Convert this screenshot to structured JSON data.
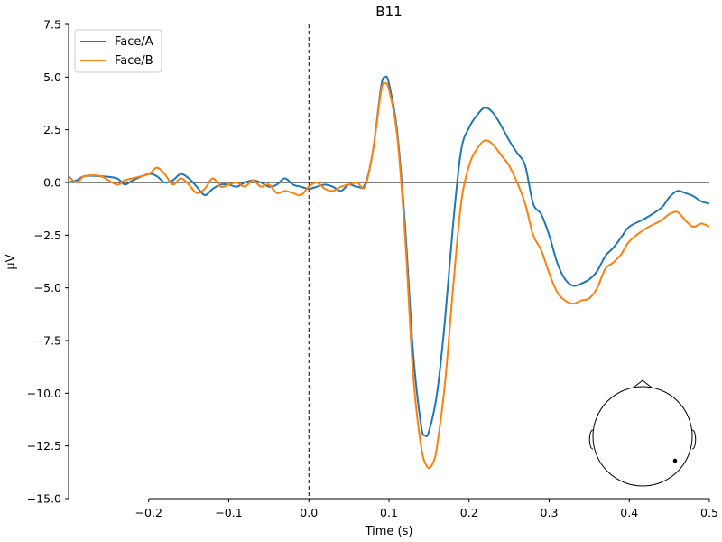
{
  "chart_data": {
    "type": "line",
    "title": "B11",
    "xlabel": "Time (s)",
    "ylabel": "µV",
    "xlim": [
      -0.3,
      0.5
    ],
    "ylim": [
      -15.0,
      7.5
    ],
    "xticks": [
      -0.2,
      -0.1,
      0.0,
      0.1,
      0.2,
      0.3,
      0.4,
      0.5
    ],
    "xtick_labels": [
      "−0.2",
      "−0.1",
      "0.0",
      "0.1",
      "0.2",
      "0.3",
      "0.4",
      "0.5"
    ],
    "yticks": [
      7.5,
      5.0,
      2.5,
      0.0,
      -2.5,
      -5.0,
      -7.5,
      -10.0,
      -12.5,
      -15.0
    ],
    "ytick_labels": [
      "7.5",
      "5.0",
      "2.5",
      "0.0",
      "−2.5",
      "−5.0",
      "−7.5",
      "−10.0",
      "−12.5",
      "−15.0"
    ],
    "grid": false,
    "legend_position": "top-left",
    "reference_lines": {
      "horizontal_y": 0.0,
      "vertical_dashed_x": 0.0
    },
    "series": [
      {
        "name": "Face/A",
        "color": "#1f77b4",
        "points": [
          [
            -0.3,
            0.0
          ],
          [
            -0.29,
            0.1
          ],
          [
            -0.28,
            0.3
          ],
          [
            -0.26,
            0.3
          ],
          [
            -0.24,
            0.2
          ],
          [
            -0.23,
            -0.1
          ],
          [
            -0.22,
            0.1
          ],
          [
            -0.2,
            0.4
          ],
          [
            -0.19,
            0.3
          ],
          [
            -0.18,
            0.0
          ],
          [
            -0.17,
            0.1
          ],
          [
            -0.16,
            0.4
          ],
          [
            -0.15,
            0.2
          ],
          [
            -0.14,
            -0.2
          ],
          [
            -0.13,
            -0.6
          ],
          [
            -0.12,
            -0.3
          ],
          [
            -0.11,
            -0.1
          ],
          [
            -0.1,
            -0.1
          ],
          [
            -0.09,
            -0.2
          ],
          [
            -0.08,
            0.0
          ],
          [
            -0.07,
            0.1
          ],
          [
            -0.06,
            0.0
          ],
          [
            -0.05,
            -0.2
          ],
          [
            -0.04,
            -0.1
          ],
          [
            -0.03,
            0.2
          ],
          [
            -0.02,
            -0.1
          ],
          [
            -0.01,
            -0.2
          ],
          [
            0.0,
            -0.3
          ],
          [
            0.01,
            -0.2
          ],
          [
            0.02,
            -0.1
          ],
          [
            0.03,
            -0.2
          ],
          [
            0.04,
            -0.4
          ],
          [
            0.05,
            -0.1
          ],
          [
            0.06,
            -0.2
          ],
          [
            0.07,
            -0.1
          ],
          [
            0.08,
            1.5
          ],
          [
            0.09,
            4.5
          ],
          [
            0.095,
            5.0
          ],
          [
            0.1,
            4.7
          ],
          [
            0.11,
            2.5
          ],
          [
            0.12,
            -2.0
          ],
          [
            0.13,
            -8.0
          ],
          [
            0.14,
            -11.5
          ],
          [
            0.145,
            -12.0
          ],
          [
            0.15,
            -11.8
          ],
          [
            0.16,
            -10.0
          ],
          [
            0.17,
            -6.5
          ],
          [
            0.18,
            -2.0
          ],
          [
            0.19,
            1.5
          ],
          [
            0.2,
            2.6
          ],
          [
            0.21,
            3.2
          ],
          [
            0.22,
            3.55
          ],
          [
            0.23,
            3.3
          ],
          [
            0.24,
            2.7
          ],
          [
            0.25,
            2.0
          ],
          [
            0.26,
            1.4
          ],
          [
            0.27,
            0.8
          ],
          [
            0.28,
            -1.0
          ],
          [
            0.29,
            -1.5
          ],
          [
            0.3,
            -2.5
          ],
          [
            0.31,
            -3.8
          ],
          [
            0.32,
            -4.6
          ],
          [
            0.33,
            -4.9
          ],
          [
            0.34,
            -4.8
          ],
          [
            0.35,
            -4.6
          ],
          [
            0.36,
            -4.2
          ],
          [
            0.37,
            -3.5
          ],
          [
            0.38,
            -3.1
          ],
          [
            0.39,
            -2.6
          ],
          [
            0.4,
            -2.1
          ],
          [
            0.42,
            -1.7
          ],
          [
            0.44,
            -1.2
          ],
          [
            0.45,
            -0.7
          ],
          [
            0.46,
            -0.4
          ],
          [
            0.47,
            -0.5
          ],
          [
            0.48,
            -0.65
          ],
          [
            0.49,
            -0.9
          ],
          [
            0.5,
            -1.0
          ]
        ]
      },
      {
        "name": "Face/B",
        "color": "#ff7f0e",
        "points": [
          [
            -0.3,
            0.3
          ],
          [
            -0.29,
            0.0
          ],
          [
            -0.28,
            0.3
          ],
          [
            -0.26,
            0.3
          ],
          [
            -0.24,
            -0.1
          ],
          [
            -0.23,
            0.1
          ],
          [
            -0.22,
            0.2
          ],
          [
            -0.2,
            0.4
          ],
          [
            -0.19,
            0.7
          ],
          [
            -0.18,
            0.4
          ],
          [
            -0.17,
            -0.1
          ],
          [
            -0.16,
            0.2
          ],
          [
            -0.15,
            -0.1
          ],
          [
            -0.14,
            -0.5
          ],
          [
            -0.13,
            -0.3
          ],
          [
            -0.12,
            0.2
          ],
          [
            -0.11,
            -0.2
          ],
          [
            -0.1,
            -0.1
          ],
          [
            -0.09,
            0.0
          ],
          [
            -0.08,
            -0.2
          ],
          [
            -0.07,
            0.1
          ],
          [
            -0.06,
            -0.2
          ],
          [
            -0.05,
            -0.1
          ],
          [
            -0.04,
            -0.5
          ],
          [
            -0.03,
            -0.4
          ],
          [
            -0.02,
            -0.5
          ],
          [
            -0.01,
            -0.6
          ],
          [
            0.0,
            -0.2
          ],
          [
            0.01,
            0.0
          ],
          [
            0.02,
            -0.3
          ],
          [
            0.03,
            -0.4
          ],
          [
            0.04,
            -0.2
          ],
          [
            0.05,
            -0.1
          ],
          [
            0.06,
            0.0
          ],
          [
            0.07,
            -0.2
          ],
          [
            0.08,
            1.5
          ],
          [
            0.09,
            4.3
          ],
          [
            0.095,
            4.7
          ],
          [
            0.1,
            4.4
          ],
          [
            0.11,
            2.3
          ],
          [
            0.12,
            -2.5
          ],
          [
            0.13,
            -9.0
          ],
          [
            0.14,
            -12.5
          ],
          [
            0.148,
            -13.5
          ],
          [
            0.155,
            -13.3
          ],
          [
            0.16,
            -12.5
          ],
          [
            0.17,
            -9.5
          ],
          [
            0.18,
            -5.0
          ],
          [
            0.19,
            -1.0
          ],
          [
            0.2,
            0.8
          ],
          [
            0.21,
            1.6
          ],
          [
            0.22,
            2.0
          ],
          [
            0.23,
            1.8
          ],
          [
            0.24,
            1.3
          ],
          [
            0.25,
            0.8
          ],
          [
            0.26,
            0.0
          ],
          [
            0.27,
            -1.0
          ],
          [
            0.28,
            -2.5
          ],
          [
            0.29,
            -3.2
          ],
          [
            0.3,
            -4.3
          ],
          [
            0.31,
            -5.2
          ],
          [
            0.32,
            -5.6
          ],
          [
            0.33,
            -5.75
          ],
          [
            0.34,
            -5.6
          ],
          [
            0.35,
            -5.5
          ],
          [
            0.36,
            -5.0
          ],
          [
            0.37,
            -4.1
          ],
          [
            0.38,
            -3.8
          ],
          [
            0.39,
            -3.4
          ],
          [
            0.4,
            -2.8
          ],
          [
            0.42,
            -2.2
          ],
          [
            0.44,
            -1.8
          ],
          [
            0.45,
            -1.5
          ],
          [
            0.46,
            -1.4
          ],
          [
            0.47,
            -1.8
          ],
          [
            0.48,
            -2.1
          ],
          [
            0.49,
            -1.95
          ],
          [
            0.5,
            -2.1
          ]
        ]
      }
    ],
    "sensor_inset": {
      "label": "head-topomap",
      "sensor_marker": true
    }
  }
}
